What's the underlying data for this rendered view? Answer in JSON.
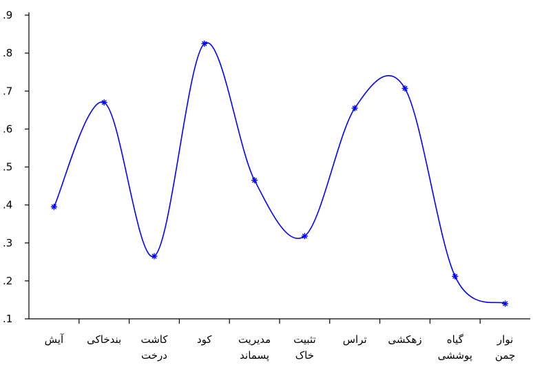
{
  "chart_data": {
    "type": "line",
    "title": "",
    "xlabel": "",
    "ylabel": "",
    "categories": [
      [
        "آیش"
      ],
      [
        "بندخاکی"
      ],
      [
        "کاشت",
        "درخت"
      ],
      [
        "کود"
      ],
      [
        "مدیریت",
        "پسماند"
      ],
      [
        "تثبیت",
        "خاک"
      ],
      [
        "تراس"
      ],
      [
        "زهکشی"
      ],
      [
        "گیاه",
        "پوششی"
      ],
      [
        "نوار",
        "چمن"
      ]
    ],
    "values": [
      0.395,
      0.67,
      0.265,
      0.825,
      0.465,
      0.318,
      0.655,
      0.707,
      0.212,
      0.14
    ],
    "ylim": [
      0.1,
      0.9
    ],
    "yticks": [
      0.1,
      0.2,
      0.3,
      0.4,
      0.5,
      0.6,
      0.7,
      0.8,
      0.9
    ],
    "ytick_labels": [
      ".1",
      ".2",
      ".3",
      ".4",
      ".5",
      ".6",
      ".7",
      ".8",
      ".9"
    ],
    "grid": false,
    "legend": false,
    "marker": "asterisk",
    "line_color": "#0000ff",
    "axis_color": "#000000"
  }
}
